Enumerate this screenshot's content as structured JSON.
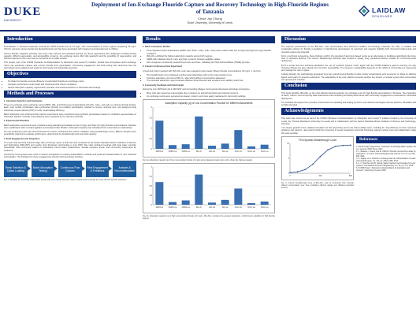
{
  "header": {
    "title": "Deployment of Ion-Exchange Fluoride Capture and Recovery Technology in High-Fluoride Regions of Tanzania",
    "authors": "Chloe Joy Chung",
    "affiliation": "Duke University, University of Leeds",
    "duke_word": "DUKE",
    "duke_sub": "UNIVERSITY",
    "laidlaw_word": "LAIDLAW",
    "laidlaw_sub": "SCHOLARS"
  },
  "sections": {
    "introduction": "Introduction",
    "objectives": "Objectives",
    "methods": "Methods and Processes",
    "results": "Results",
    "discussion": "Discussion",
    "conclusion": "Conclusion",
    "acknowledgements": "Acknowledgements",
    "references": "References"
  },
  "introduction": {
    "p1": "Groundwater in Tanzania frequently exceeds the WHO fluoride limit of 1.5 mg/L, with concentrations in some regions surpassing 10 mg/L. Chronic exposure causes dental and skeletal fluorosis and has been associated with impaired neurodevelopment in children.",
    "p2": "Current fluoride mitigation primarily uses bone char sorbents and activated alumina, but these approaches face challenges including limited capacity, difficult regeneration, and acceptability concerns. Ion exchange resins offer high selectivity and the possibility of regeneration, and fluoride captured on the resin may be recovered as a usable product.",
    "p3": "This project, part of the FUNDI (Tanzania Co-Defluoridation by Adsorption and recoverY) initiative, studied how strong-base anion exchange resins can selectively capture and recover fluoride from groundwater. Community engagement and field testing help determine how the technology can be adapted and scaled to local needs and sustainable operation."
  },
  "objectives": {
    "items": [
      "To obtain the fluoride removal efficiency of each batch fluoride ion exchange resins.",
      "Compare performance under batch and continuous flow column conditions.",
      "Assess adsorption capacity, regeneration potential, and social acceptance in Tanzanian field settings."
    ]
  },
  "methods": {
    "h1": "1. Adsorbent Selection and Treatments",
    "p1": "Three ion exchange anion-exchange resins (AMPA, IRA, and SCLF) were functionalized with Al3+, Ca2+, and La3+ to enhance fluoride binding. Each resin sorbed combination was synthesized through ion-modified coordination, washed to remove unbound ions, and analyzed using inductively coupled plasma (ICP) to verify metal loading efficiency.",
    "p2": "Batch adsorption and continuous flow column experiments were conducted using synthetic groundwater based on conditions representative of Tanzanian aquifers. Fluoride concentrations were measured by ion selective electrode.",
    "h2": "2. Experimental Workflow",
    "p3": "Batch adsorption experiments were conducted using standard groundwater at low (4 mg/L) and high (10 mg/L) fluoride concentrations. Samples were equilibrated under constant agitation and analyzed after filtration. Adsorption capacity was calculated from mass balance relationships.",
    "p4": "The top performing resin was carried forward into column continuous flow column validation using breakthrough curves. Effluent samples were periodically collected to evaluate performance, determining the breakthrough point and total capacity.",
    "h3": "3. Field Engagement and Integration",
    "p5": "To ensure that technical solutions align with community needs, a field visit was conducted to the Nelson Mandela African Institution of Science and Technology (NM-AIST) and nearby rural Tanzanian communities in July 2025. Site visits included meetings with local water councils, households, and community leaders to understand current water infrastructure, fluoride exposure levels, and community preferences for treatment.",
    "p6": "Community focus groups were used to assess perceptions of existing defluoridation methods and preferred characteristics of new treatment technologies. The findings from these engagements directly informed design priorities.",
    "flow": [
      "Resin Selection & Cation Loading",
      "Batch Adsorption Testing",
      "Continuous Flow Column",
      "Field Engagement & Feedback",
      "Analysis & Recommendation"
    ],
    "fig_caption": "Fig. 1. Workflow for continuing scaled batch testing with resin through field and column experiments to identify the most effective fluoride adsorbent."
  },
  "results": {
    "h1": "1. Batch Adsorption Studies",
    "items": [
      "Three liganded metal combinations (AMPA, IRA, SCLF + Al3+, La3+, Ca2+) were tested under low (4 mg/L) and high (10 mg/L) fluoride conditions.",
      "IRA-Al3+ exhibited the highest adsorption capacity across both regimes.",
      "AMPA-Al3+ followed closely; La3+ and Ca2+ systems showed negligible uptake.",
      "Al3+ complexes consistently outperformed La3+ and Ca2+, validating the Hard-Soft Acid-Base (HSAB) principle."
    ],
    "h2": "2. Column Continuous-Flow Experiment",
    "p1": "A fixed-bed column packed with IRA-Al3+ resin was evaluated under steady influent fluoride concentrations (10 mg/L, 1 mL/min).",
    "items2": [
      "The breakthrough curve displayed a defined sigmoidal shape with a long mass-transfer zone.",
      "Complete saturation occurred at 600 mL, after which effluent concentration plateaued.",
      "The extended adsorption region indicates diffusion-limited kinetics and excellent resin stability under flow."
    ],
    "h3": "3. Community Feedback and Field Insight",
    "p2": "During the July 2025 field visit to NM-AIST and surrounding villages, focus groups discussed technology acceptance.",
    "items3": [
      "Bone char was viewed as unacceptable due to reliance on animal byproducts and cultural concerns.",
      "Ion exchange resins were perceived as cleaner, modern, and more easily maintained in community settings."
    ],
    "fig2_title": "Adsorption Capacity (q) of Low Concentration Fluoride for Different Adsorbents",
    "fig2_caption": "Fig. 2a. Adsorption capacity (q) of low concentration fluoride (4 mg/L) across liganded metal resins. Al3+ shows the highest capacity.",
    "fig3_caption": "Fig. 2b. Adsorption capacity (q) of high concentration fluoride (10 mg/L). IRA-Al3+ maintains the greatest adsorption, confirming its suitability for high-fluoride regions.",
    "fig4_title": "FTA Dynamic Breakthrough Curve",
    "fig4_caption": "Fig. 3. Column breakthrough curve of IRA-Al3+ resin at continuous flow. Fluoride effluent concentration over time, indicating efficient uptake and diffusion-controlled kinetics."
  },
  "discussion": {
    "p1": "The superior performance of the IRA-Al3+ resin demonstrates that aluminum-modified ion-exchange materials can offer a scalable and sustainable solution for fluoride remediation in high-fluoride groundwater. Its selectivity and capacity highlight both chemical fundamentals and practical engineering potential.",
    "p2": "From a technical perspective, these findings confirm the potential of aluminum-based resins as an alternative to traditional adsorbents like bone char or activated alumina. The column breakthrough behavior also showed a steady, long operational lifetime suitable for community-scale deployment.",
    "p3": "From a social and user technical standpoint, the use of synthetic polymer resins aligns with the FUNDI initiative's goal of ensuring not only chemical efficacy but also cultural and economic acceptability. The long-term sustainability depends on the ability of communities to regenerate and manage the resin in place.",
    "p4": "Looking forward, the methodology developed here can extend beyond fluoride to other priority contaminants such as arsenic or nitrate by tailoring ligand metal pairs for selective adsorption. The adaptability of the resin platform presents another key benefit: a modular system that communities can operate and maintain."
  },
  "conclusion": {
    "p1": "This study identifies IRA-Al3+ as the most effective fluoride-selective ion exchange resin for high-fluoride groundwater in Tanzania. The integration of batch, column, and community data underscores that combining technical performance with community engagement is essential for successful deployment.",
    "p2": "The workflow developed here provides a framework for evaluating and scaling up future resin-based technologies that are effective, affordable and socially accepted."
  },
  "acknowledgements": {
    "p1": "This work was carried out as part of the FUNDI (Tanzania Co-Defluoridation by Adsorption and recoverY) initiative funded by the University of Leeds, the Thomas Reichstein (University of Leeds) and in collaboration with the Nelson Mandela African Institution of Science and Technology, Tanzania.",
    "p2": "I am deeply grateful to the Laidlaw Foundation for this opportunity and to the Duke Laidlaw team, including Dr. Joey Roberts, for their continued guidance and support. I also warmly thank the University of Leeds researchers and local Tanzanian partners whose input and collaboration made this work possible."
  },
  "references": {
    "items": [
      "1. World Health Organization. Guidelines for Drinking-Water Quality, 4th ed., Geneva: WHO Press, 2017.",
      "2. L. Wekesa, J. Kaina, and M. Ulbricht. Fluoride removal from water by adsorption—a review. Chemical Engineering Journal, vol. 171, pp. 811–840, 2011.",
      "3. S. Jagtap, et al. Fluoride in drinking water and defluoridation of water. Chemical Reviews, vol. 112, pp. 2454–2466, 2012.",
      "4. A. C. Sanchez and R. Garcia. Water treatment technologies for rural systems. International Journal of Engineering, vol. 12, pp. 1–9, 2018.",
      "5. FUNDI Project. Tanzania Co-Defluoridation by Adsorption and recoverY, University of Leeds, 2025."
    ]
  },
  "chart_data": [
    {
      "type": "bar",
      "title": "Adsorption Capacity (q) of Low Concentration Fluoride for Different Adsorbents",
      "categories": [
        "AMPA-Al",
        "AMPA-Ca",
        "AMPA-La",
        "IRA-Al",
        "IRA-Ca",
        "IRA-La",
        "SCLF-Al",
        "SCLF-Ca",
        "SCLF-La"
      ],
      "values": [
        1.35,
        0.18,
        0.22,
        1.55,
        0.15,
        0.25,
        0.9,
        0.12,
        0.2
      ],
      "ylim": [
        0,
        2
      ],
      "color": "#3a6fb0"
    },
    {
      "type": "bar",
      "title": "",
      "categories": [
        "AMPA-Al",
        "AMPA-Ca",
        "AMPA-La",
        "IRA-Al",
        "IRA-Ca",
        "IRA-La",
        "SCLF-Al",
        "SCLF-Ca",
        "SCLF-La"
      ],
      "values": [
        4.2,
        0.5,
        0.8,
        5.6,
        0.4,
        0.9,
        3.0,
        0.3,
        0.6
      ],
      "ylim": [
        0,
        7
      ],
      "color": "#3a6fb0"
    },
    {
      "type": "line",
      "title": "FTA Dynamic Breakthrough Curve",
      "x": [
        0,
        100,
        200,
        300,
        400,
        500,
        600,
        700,
        800
      ],
      "values": [
        0.2,
        0.5,
        1.2,
        3.0,
        5.6,
        7.8,
        9.0,
        9.3,
        9.4
      ],
      "ylim": [
        0,
        10
      ],
      "color": "#2b4d8a"
    }
  ],
  "colors": {
    "primary": "#0f2c77",
    "flow": "#1f5fa0"
  }
}
